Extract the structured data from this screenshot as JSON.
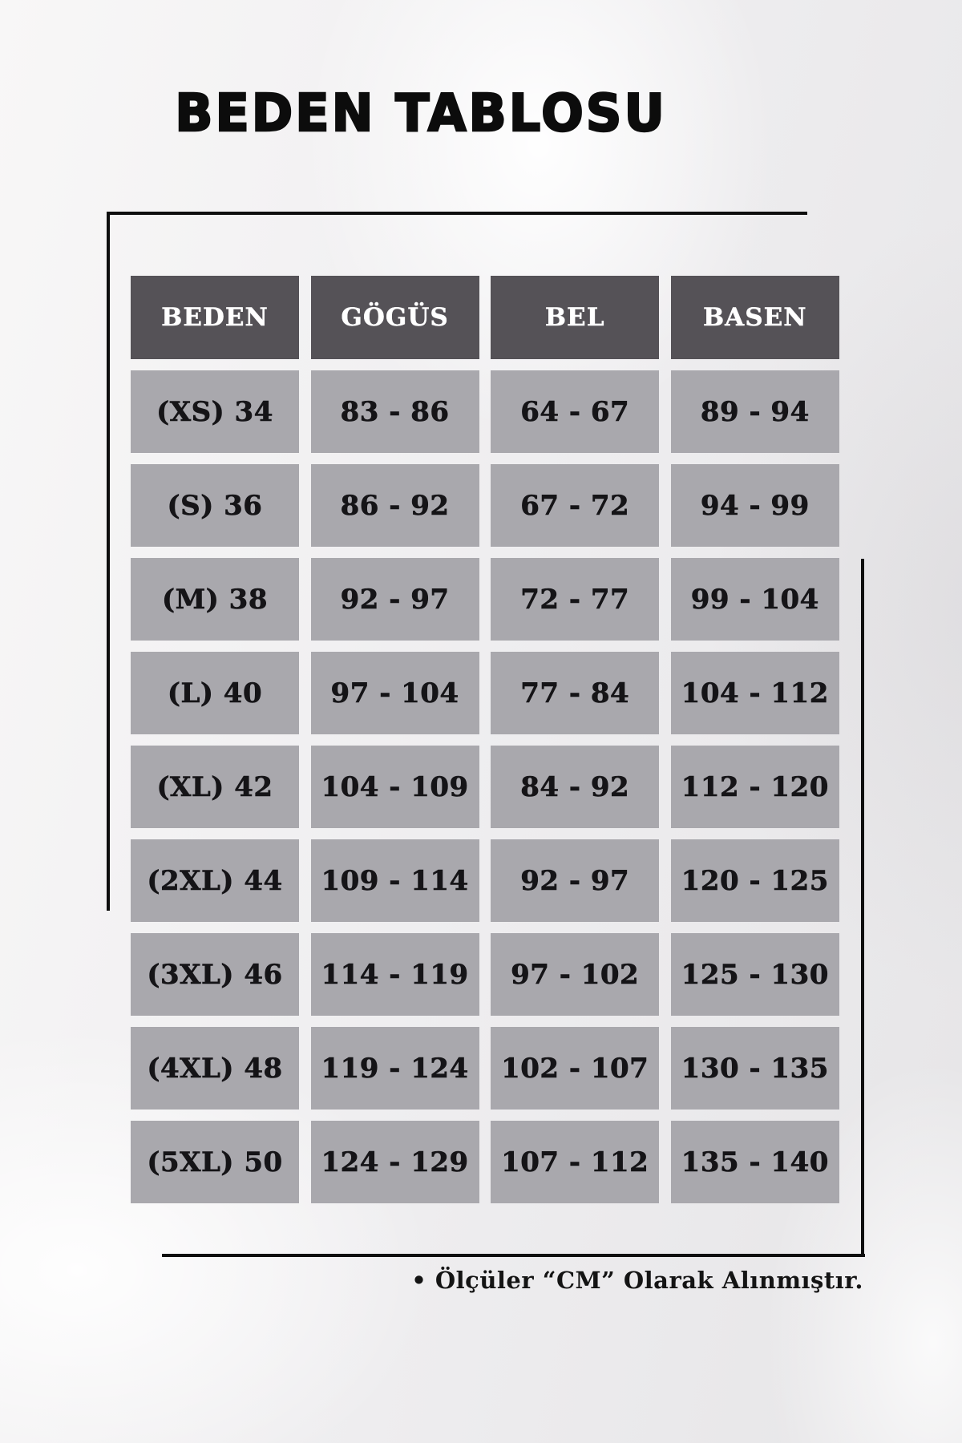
{
  "page": {
    "title": "BEDEN TABLOSU",
    "note": "• Ölçüler “CM” Olarak Alınmıştır."
  },
  "colors": {
    "header_bg": "#555257",
    "header_text": "#ffffff",
    "cell_bg": "#a9a8ad",
    "cell_text": "#151417",
    "frame": "#0e0e0e",
    "page_bg_left": "#f8f7f7",
    "page_bg_right": "#e6e5e7"
  },
  "table": {
    "headers": [
      "BEDEN",
      "GÖGÜS",
      "BEL",
      "BASEN"
    ],
    "rows": [
      [
        "(XS) 34",
        "83 - 86",
        "64 - 67",
        "89 - 94"
      ],
      [
        "(S) 36",
        "86 - 92",
        "67 - 72",
        "94 - 99"
      ],
      [
        "(M) 38",
        "92 - 97",
        "72 - 77",
        "99 - 104"
      ],
      [
        "(L) 40",
        "97 - 104",
        "77 - 84",
        "104 - 112"
      ],
      [
        "(XL) 42",
        "104 - 109",
        "84 - 92",
        "112 - 120"
      ],
      [
        "(2XL) 44",
        "109 - 114",
        "92 - 97",
        "120 - 125"
      ],
      [
        "(3XL) 46",
        "114 - 119",
        "97 - 102",
        "125 - 130"
      ],
      [
        "(4XL) 48",
        "119 - 124",
        "102 - 107",
        "130 - 135"
      ],
      [
        "(5XL) 50",
        "124 - 129",
        "107 - 112",
        "135 - 140"
      ]
    ]
  }
}
